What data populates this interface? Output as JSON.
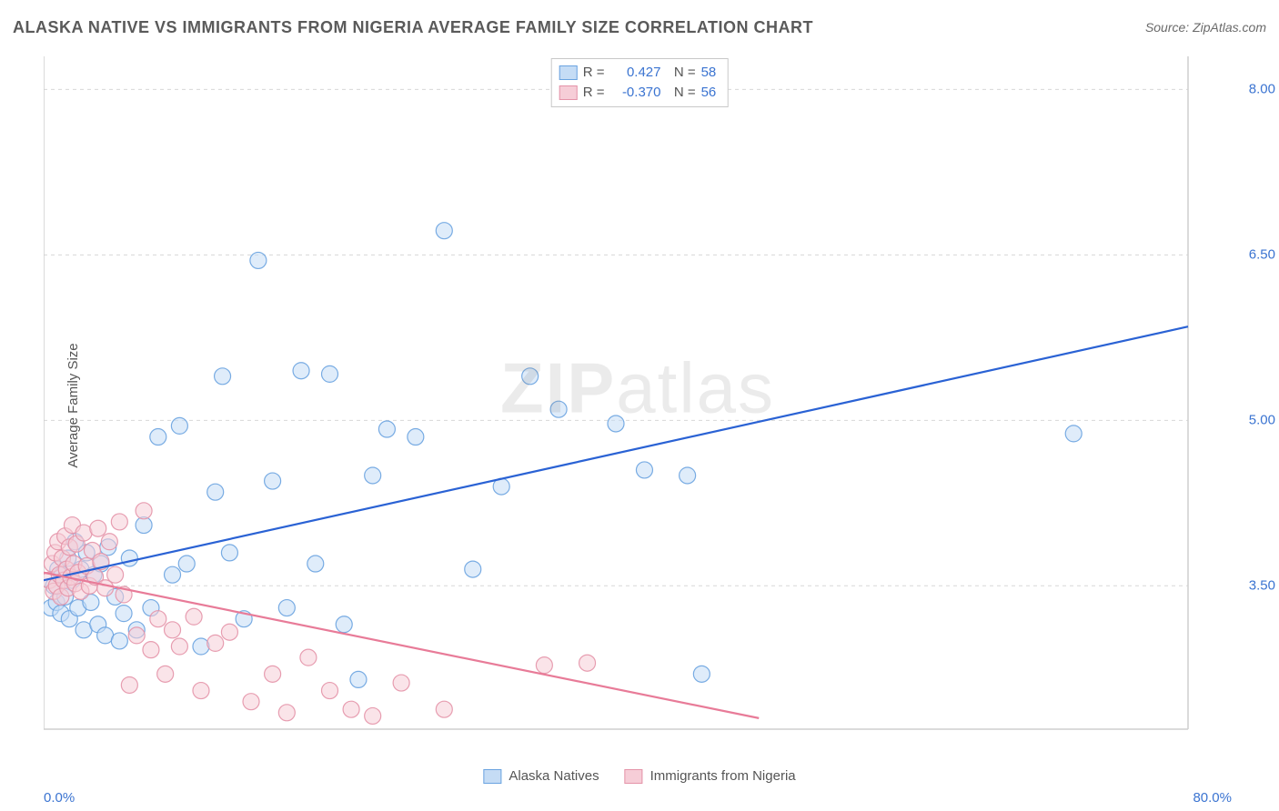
{
  "title": "ALASKA NATIVE VS IMMIGRANTS FROM NIGERIA AVERAGE FAMILY SIZE CORRELATION CHART",
  "source": "Source: ZipAtlas.com",
  "ylabel": "Average Family Size",
  "watermark_bold": "ZIP",
  "watermark_rest": "atlas",
  "chart": {
    "type": "scatter",
    "xlim": [
      0,
      80
    ],
    "ylim": [
      2.2,
      8.3
    ],
    "x_tick_min_label": "0.0%",
    "x_tick_max_label": "80.0%",
    "y_ticks": [
      3.5,
      5.0,
      6.5,
      8.0
    ],
    "y_tick_labels": [
      "3.50",
      "5.00",
      "6.50",
      "8.00"
    ],
    "grid_color": "#d7d7d7",
    "grid_dash": "4 4",
    "axis_color": "#cfcfcf",
    "background_color": "#ffffff",
    "tick_label_color": "#3b74d1",
    "label_fontsize": 15,
    "title_fontsize": 18,
    "title_color": "#5a5a5a",
    "marker_radius": 9,
    "marker_opacity": 0.55,
    "line_width": 2.2,
    "series": [
      {
        "name": "Alaska Natives",
        "color_fill": "#c5dcf5",
        "color_stroke": "#6aa3e0",
        "line_color": "#2a62d4",
        "R": "0.427",
        "N": "58",
        "trend": {
          "x1": 0,
          "y1": 3.55,
          "x2": 80,
          "y2": 5.85
        },
        "points": [
          [
            0.5,
            3.3
          ],
          [
            0.7,
            3.5
          ],
          [
            0.9,
            3.35
          ],
          [
            1.0,
            3.65
          ],
          [
            1.2,
            3.25
          ],
          [
            1.3,
            3.6
          ],
          [
            1.5,
            3.4
          ],
          [
            1.7,
            3.75
          ],
          [
            1.8,
            3.2
          ],
          [
            2.0,
            3.55
          ],
          [
            2.2,
            3.9
          ],
          [
            2.4,
            3.3
          ],
          [
            2.6,
            3.65
          ],
          [
            2.8,
            3.1
          ],
          [
            3.0,
            3.8
          ],
          [
            3.3,
            3.35
          ],
          [
            3.5,
            3.6
          ],
          [
            3.8,
            3.15
          ],
          [
            4.0,
            3.7
          ],
          [
            4.3,
            3.05
          ],
          [
            4.5,
            3.85
          ],
          [
            5.0,
            3.4
          ],
          [
            5.3,
            3.0
          ],
          [
            5.6,
            3.25
          ],
          [
            6.0,
            3.75
          ],
          [
            6.5,
            3.1
          ],
          [
            7.0,
            4.05
          ],
          [
            7.5,
            3.3
          ],
          [
            8.0,
            4.85
          ],
          [
            9.0,
            3.6
          ],
          [
            9.5,
            4.95
          ],
          [
            10.0,
            3.7
          ],
          [
            11.0,
            2.95
          ],
          [
            12.0,
            4.35
          ],
          [
            12.5,
            5.4
          ],
          [
            13.0,
            3.8
          ],
          [
            14.0,
            3.2
          ],
          [
            15.0,
            6.45
          ],
          [
            16.0,
            4.45
          ],
          [
            17.0,
            3.3
          ],
          [
            18.0,
            5.45
          ],
          [
            19.0,
            3.7
          ],
          [
            20.0,
            5.42
          ],
          [
            21.0,
            3.15
          ],
          [
            22.0,
            2.65
          ],
          [
            23.0,
            4.5
          ],
          [
            24.0,
            4.92
          ],
          [
            26.0,
            4.85
          ],
          [
            28.0,
            6.72
          ],
          [
            30.0,
            3.65
          ],
          [
            32.0,
            4.4
          ],
          [
            34.0,
            5.4
          ],
          [
            36.0,
            5.1
          ],
          [
            40.0,
            4.97
          ],
          [
            42.0,
            4.55
          ],
          [
            45.0,
            4.5
          ],
          [
            46.0,
            2.7
          ],
          [
            72.0,
            4.88
          ]
        ]
      },
      {
        "name": "Immigrants from Nigeria",
        "color_fill": "#f6cdd7",
        "color_stroke": "#e493a8",
        "line_color": "#e87b98",
        "R": "-0.370",
        "N": "56",
        "trend": {
          "x1": 0,
          "y1": 3.62,
          "x2": 50,
          "y2": 2.3
        },
        "points": [
          [
            0.4,
            3.55
          ],
          [
            0.6,
            3.7
          ],
          [
            0.7,
            3.45
          ],
          [
            0.8,
            3.8
          ],
          [
            0.9,
            3.5
          ],
          [
            1.0,
            3.9
          ],
          [
            1.1,
            3.6
          ],
          [
            1.2,
            3.4
          ],
          [
            1.3,
            3.75
          ],
          [
            1.4,
            3.55
          ],
          [
            1.5,
            3.95
          ],
          [
            1.6,
            3.65
          ],
          [
            1.7,
            3.48
          ],
          [
            1.8,
            3.85
          ],
          [
            1.9,
            3.58
          ],
          [
            2.0,
            4.05
          ],
          [
            2.1,
            3.7
          ],
          [
            2.2,
            3.52
          ],
          [
            2.3,
            3.88
          ],
          [
            2.4,
            3.62
          ],
          [
            2.6,
            3.45
          ],
          [
            2.8,
            3.98
          ],
          [
            3.0,
            3.68
          ],
          [
            3.2,
            3.5
          ],
          [
            3.4,
            3.82
          ],
          [
            3.6,
            3.58
          ],
          [
            3.8,
            4.02
          ],
          [
            4.0,
            3.72
          ],
          [
            4.3,
            3.48
          ],
          [
            4.6,
            3.9
          ],
          [
            5.0,
            3.6
          ],
          [
            5.3,
            4.08
          ],
          [
            5.6,
            3.42
          ],
          [
            6.0,
            2.6
          ],
          [
            6.5,
            3.05
          ],
          [
            7.0,
            4.18
          ],
          [
            7.5,
            2.92
          ],
          [
            8.0,
            3.2
          ],
          [
            8.5,
            2.7
          ],
          [
            9.0,
            3.1
          ],
          [
            9.5,
            2.95
          ],
          [
            10.5,
            3.22
          ],
          [
            11.0,
            2.55
          ],
          [
            12.0,
            2.98
          ],
          [
            13.0,
            3.08
          ],
          [
            14.5,
            2.45
          ],
          [
            16.0,
            2.7
          ],
          [
            17.0,
            2.35
          ],
          [
            18.5,
            2.85
          ],
          [
            20.0,
            2.55
          ],
          [
            21.5,
            2.38
          ],
          [
            23.0,
            2.32
          ],
          [
            25.0,
            2.62
          ],
          [
            28.0,
            2.38
          ],
          [
            35.0,
            2.78
          ],
          [
            38.0,
            2.8
          ]
        ]
      }
    ]
  }
}
